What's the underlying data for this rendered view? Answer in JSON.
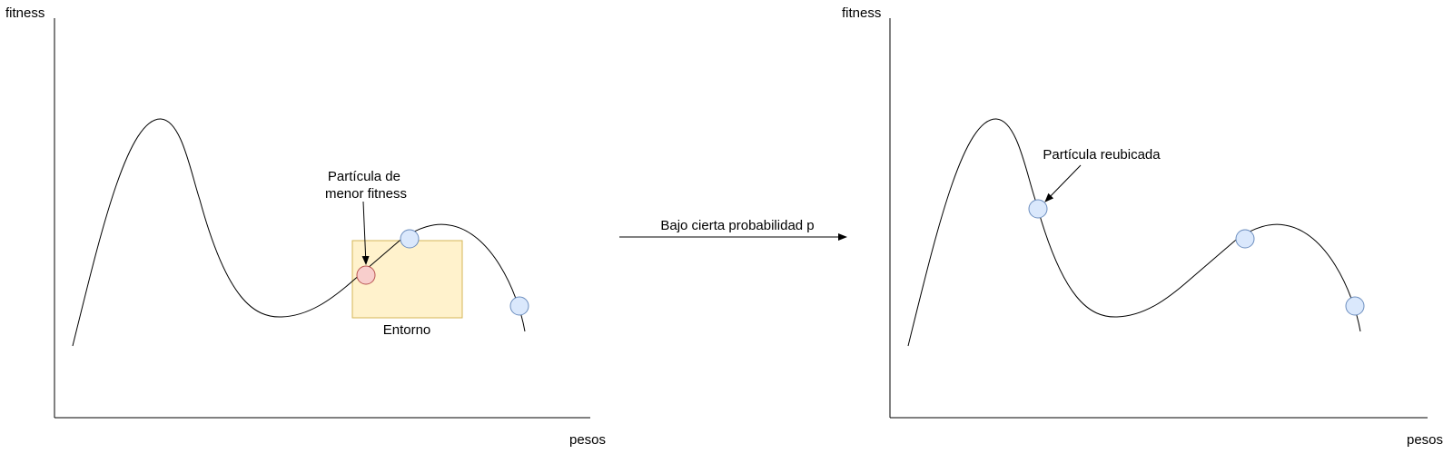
{
  "colors": {
    "axis": "#000000",
    "curve": "#000000",
    "particle_fill": "#dae8fc",
    "particle_stroke": "#6c8ebf",
    "worst_particle_fill": "#f8cecc",
    "worst_particle_stroke": "#b85450",
    "neighborhood_fill": "#fff2cc",
    "neighborhood_stroke": "#d6b656"
  },
  "left_panel": {
    "y_axis_label": "fitness",
    "x_axis_label": "pesos",
    "worst_particle_label_line1": "Partícula de",
    "worst_particle_label_line2": "menor fitness",
    "neighborhood_label": "Entorno"
  },
  "transition": {
    "label": "Bajo cierta probabilidad p"
  },
  "right_panel": {
    "y_axis_label": "fitness",
    "x_axis_label": "pesos",
    "relocated_particle_label": "Partícula reubicada"
  }
}
